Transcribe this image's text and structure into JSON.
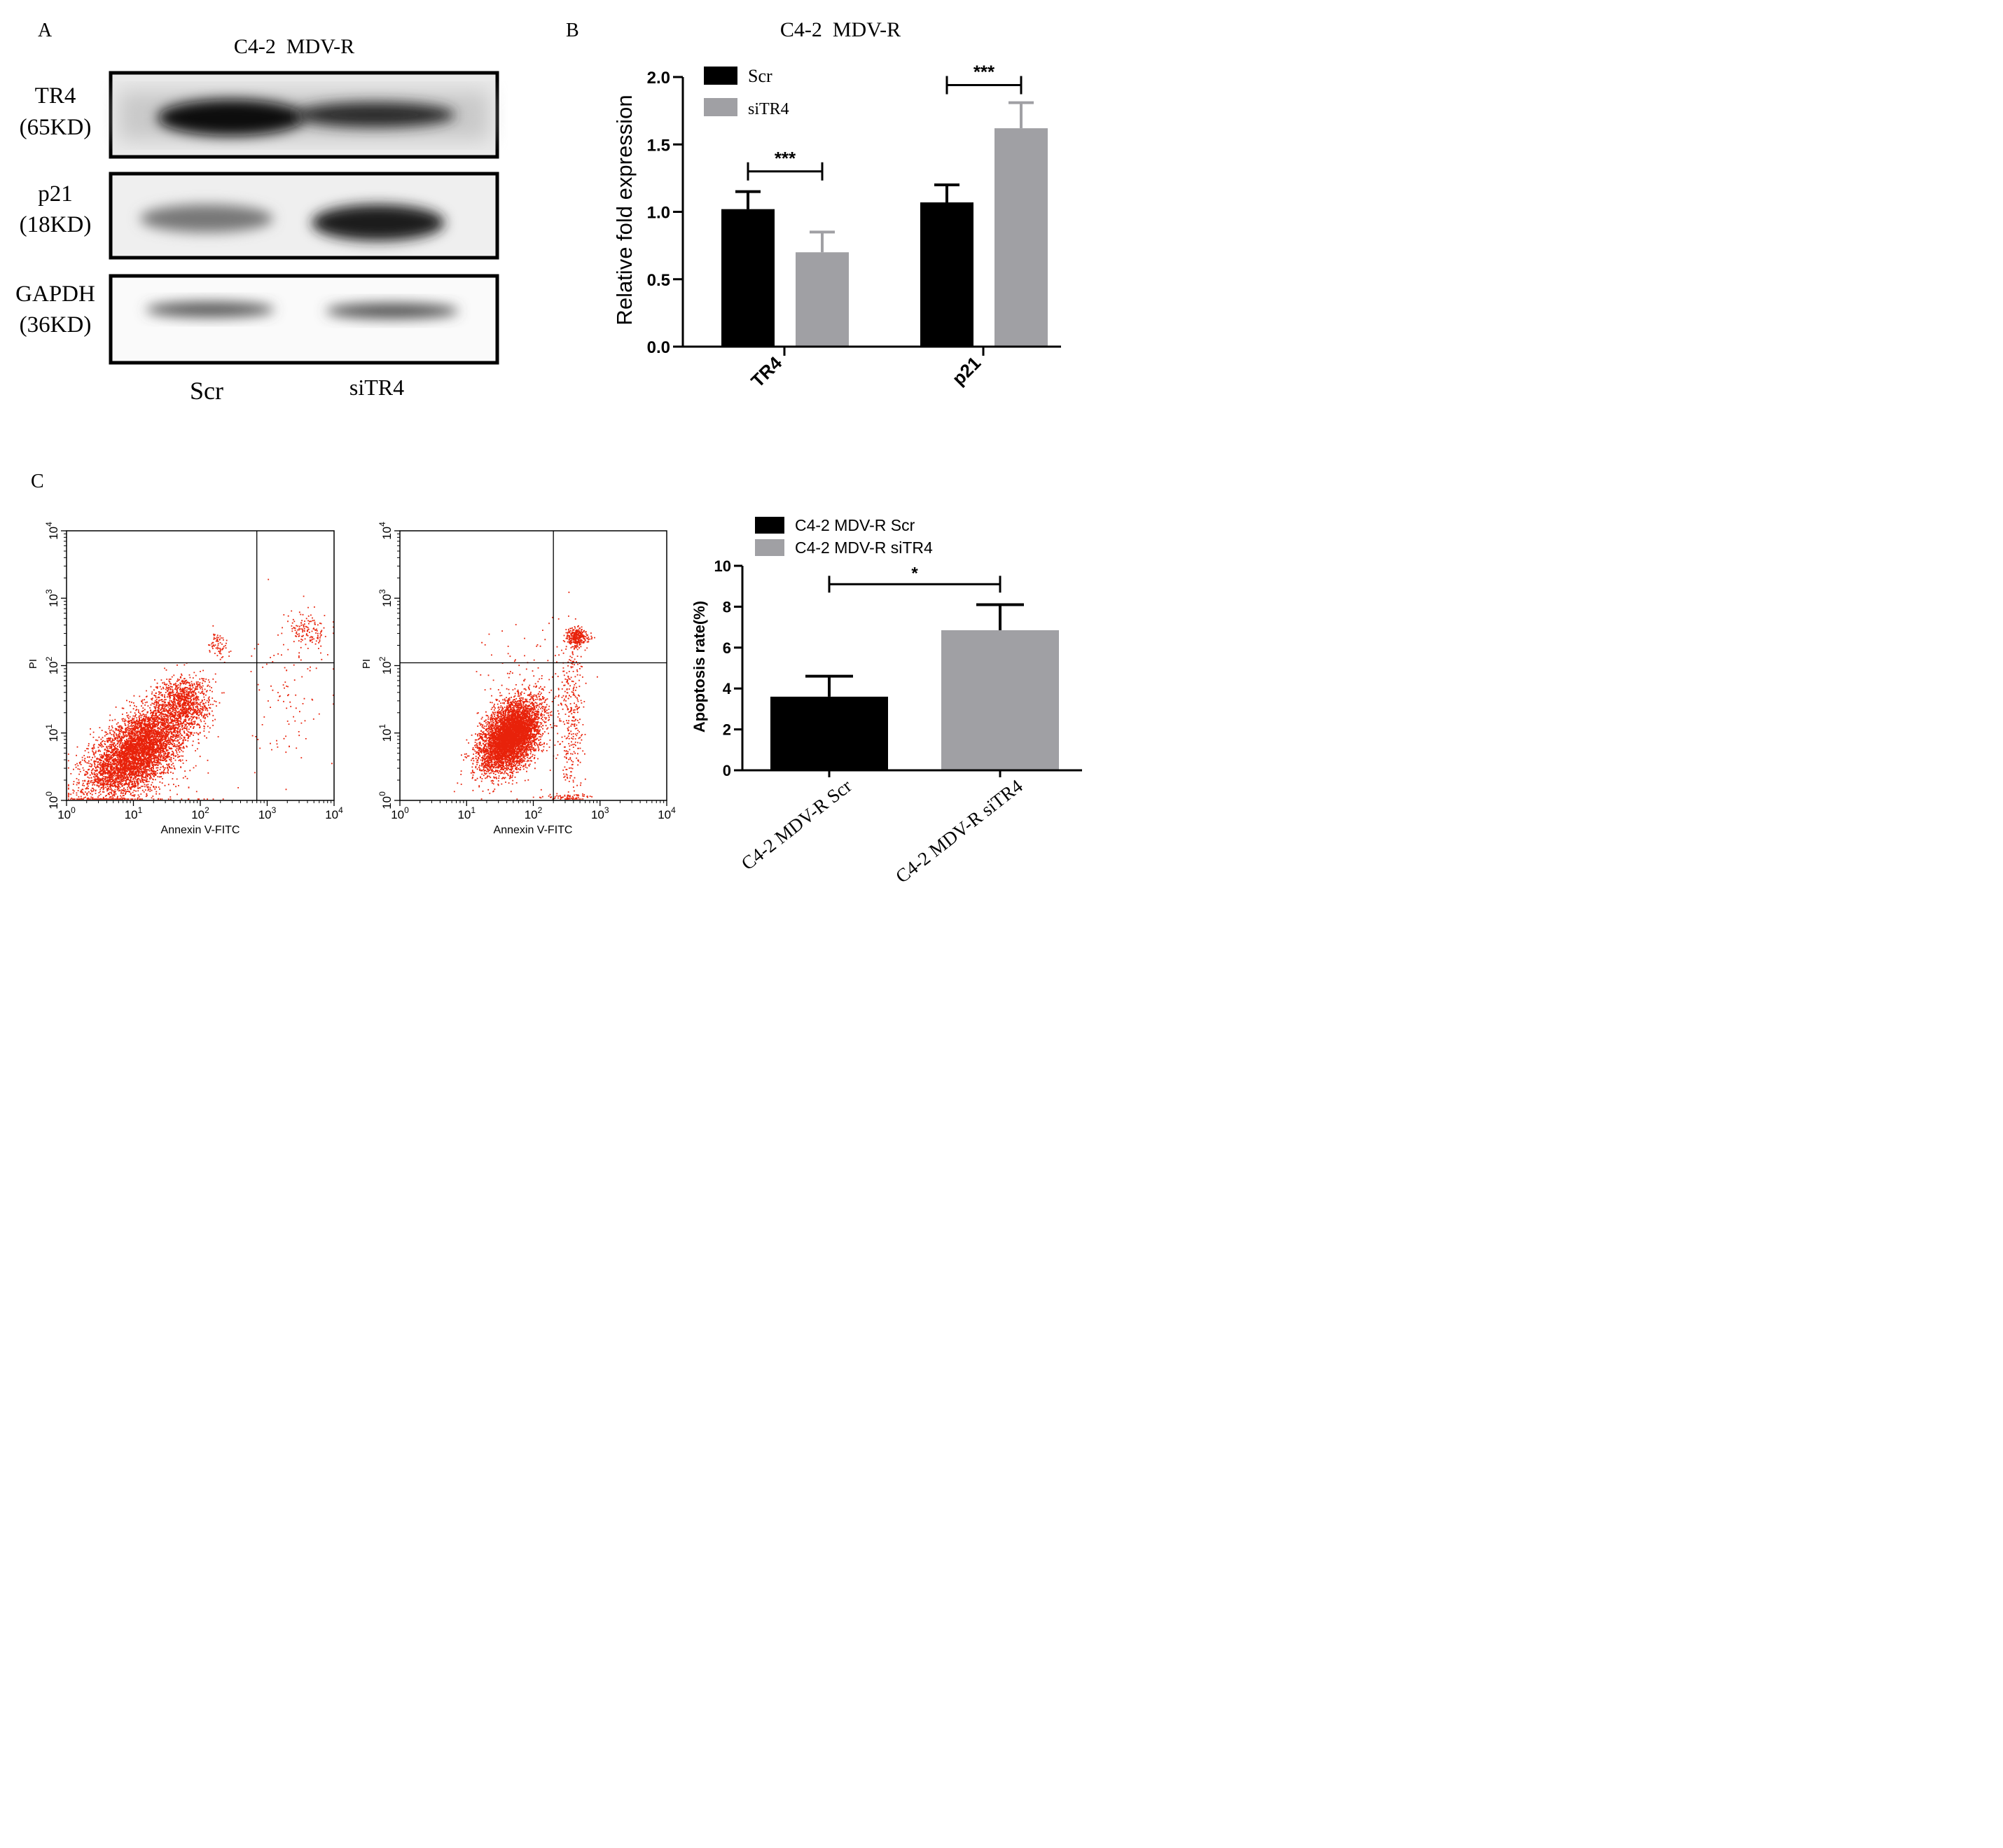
{
  "panel_a": {
    "letter": "A",
    "title": "C4-2  MDV-R",
    "blots": [
      {
        "protein": "TR4",
        "size": "(65KD)"
      },
      {
        "protein": "p21",
        "size": "(18KD)"
      },
      {
        "protein": "GAPDH",
        "size": "(36KD)"
      }
    ],
    "lanes": [
      "Scr",
      "siTR4"
    ]
  },
  "panel_b": {
    "letter": "B",
    "title": "C4-2  MDV-R",
    "legend": [
      "Scr",
      "siTR4"
    ],
    "significance": [
      "***",
      "***"
    ]
  },
  "panel_c": {
    "letter": "C",
    "flow_left": {
      "xlabel": "Annexin V-FITC",
      "ylabel": "PI"
    },
    "flow_right": {
      "xlabel": "Annexin V-FITC",
      "ylabel": "PI"
    },
    "legend": [
      "C4-2 MDV-R Scr",
      "C4-2 MDV-R siTR4"
    ],
    "significance": [
      "*"
    ]
  },
  "colors": {
    "dark": "#000000",
    "gray": "#a0a0a4",
    "flow": "#e8220a"
  },
  "chart_data": [
    {
      "type": "bar",
      "panel": "B",
      "title": "C4-2  MDV-R",
      "categories": [
        "TR4",
        "p21"
      ],
      "series": [
        {
          "name": "Scr",
          "values": [
            1.02,
            1.07
          ],
          "errors": [
            0.13,
            0.13
          ]
        },
        {
          "name": "siTR4",
          "values": [
            0.7,
            1.62
          ],
          "errors": [
            0.15,
            0.19
          ]
        }
      ],
      "xlabel": "",
      "ylabel": "Relative fold expression",
      "ylim": [
        0,
        2.0
      ],
      "yticks": [
        "0.0",
        "0.5",
        "1.0",
        "1.5",
        "2.0"
      ],
      "legend_position": "top-left"
    },
    {
      "type": "scatter",
      "panel": "C-left",
      "xlabel": "Annexin V-FITC",
      "ylabel": "PI",
      "xscale": "log",
      "yscale": "log",
      "xlim": [
        1,
        10000
      ],
      "ylim": [
        1,
        10000
      ],
      "xticks": [
        "10^0",
        "10^1",
        "10^2",
        "10^3",
        "10^4"
      ],
      "yticks": [
        "10^0",
        "10^1",
        "10^2",
        "10^3",
        "10^4"
      ],
      "gate": {
        "x": 700,
        "y": 110
      }
    },
    {
      "type": "scatter",
      "panel": "C-right",
      "xlabel": "Annexin V-FITC",
      "ylabel": "PI",
      "xscale": "log",
      "yscale": "log",
      "xlim": [
        1,
        10000
      ],
      "ylim": [
        1,
        10000
      ],
      "xticks": [
        "10^0",
        "10^1",
        "10^2",
        "10^3",
        "10^4"
      ],
      "yticks": [
        "10^0",
        "10^1",
        "10^2",
        "10^3",
        "10^4"
      ],
      "gate": {
        "x": 200,
        "y": 110
      }
    },
    {
      "type": "bar",
      "panel": "C-right-bar",
      "categories": [
        "C4-2 MDV-R Scr",
        "C4-2 MDV-R siTR4"
      ],
      "values": [
        3.6,
        6.85
      ],
      "errors": [
        1.0,
        1.25
      ],
      "xlabel": "",
      "ylabel": "Apoptosis rate(%)",
      "ylim": [
        0,
        10
      ],
      "yticks": [
        "0",
        "2",
        "4",
        "6",
        "8",
        "10"
      ],
      "legend_position": "top"
    }
  ]
}
